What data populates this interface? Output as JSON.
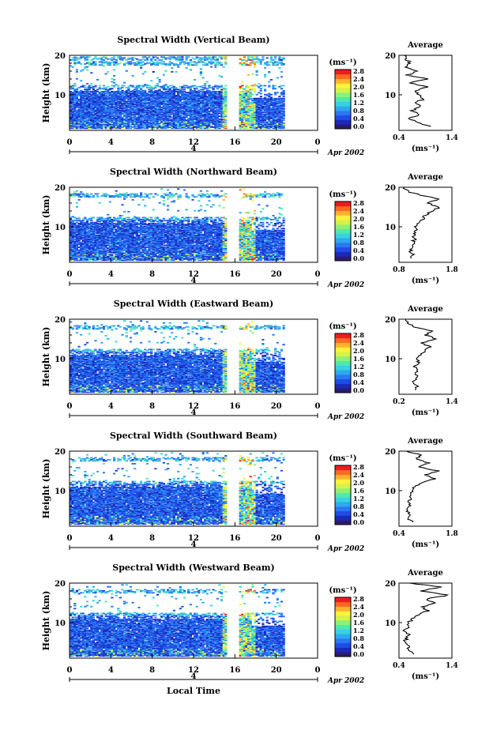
{
  "chart_data": {
    "type": "heatmap",
    "date_label": "Apr 2002",
    "day_label": "4",
    "xlabel": "Local Time",
    "x_ticks": [
      "0",
      "4",
      "8",
      "12",
      "16",
      "20",
      "0"
    ],
    "xlim": [
      0,
      24
    ],
    "ylabel": "Height (km)",
    "y_ticks": [
      "10",
      "20"
    ],
    "ylim": [
      1,
      20
    ],
    "colorbar": {
      "unit": "(ms⁻¹)",
      "ticks": [
        "0.0",
        "0.4",
        "0.8",
        "1.2",
        "1.6",
        "2.0",
        "2.4",
        "2.8"
      ],
      "range": [
        0.0,
        3.0
      ],
      "colors": [
        "#2b1a6e",
        "#1a2ab8",
        "#1f4ce6",
        "#2a78f2",
        "#2ea8f0",
        "#37d2e0",
        "#4fe8b0",
        "#8ef07a",
        "#d6f24a",
        "#fff23a",
        "#ffb22e",
        "#ff6a22",
        "#f01c1c"
      ]
    },
    "data_gap_hours": [
      15.0,
      16.2
    ],
    "data_end_hour": 20.6,
    "average_title": "Average",
    "average_xlabel": "(ms⁻¹)",
    "panels": [
      {
        "title": "Spectral Width (Vertical Beam)",
        "avg_xticks": [
          "0.4",
          "1.4"
        ],
        "avg_xlim": [
          0.4,
          1.4
        ],
        "avg_profile": {
          "height": [
            2,
            3,
            4,
            5,
            6,
            7,
            8,
            9,
            10,
            11,
            12,
            13,
            14,
            15,
            16,
            17,
            18,
            19,
            20
          ],
          "value": [
            0.98,
            0.72,
            0.6,
            0.78,
            0.65,
            0.82,
            0.7,
            0.88,
            0.75,
            0.7,
            0.92,
            0.6,
            0.95,
            0.55,
            0.75,
            0.5,
            0.62,
            0.55,
            0.5
          ]
        }
      },
      {
        "title": "Spectral Width (Northward Beam)",
        "avg_xticks": [
          "0.8",
          "1.8"
        ],
        "avg_xlim": [
          0.8,
          1.8
        ],
        "avg_profile": {
          "height": [
            2,
            3,
            4,
            5,
            6,
            7,
            8,
            9,
            10,
            11,
            12,
            13,
            14,
            15,
            16,
            17,
            18,
            19,
            20
          ],
          "value": [
            1.0,
            1.05,
            1.02,
            1.08,
            1.05,
            1.1,
            1.08,
            1.12,
            1.1,
            1.15,
            1.25,
            1.3,
            1.45,
            1.55,
            1.35,
            1.55,
            1.2,
            0.95,
            0.9
          ]
        }
      },
      {
        "title": "Spectral Width (Eastward Beam)",
        "avg_xticks": [
          "0.2",
          "1.4"
        ],
        "avg_xlim": [
          0.2,
          1.4
        ],
        "avg_profile": {
          "height": [
            2,
            3,
            4,
            5,
            6,
            7,
            8,
            9,
            10,
            11,
            12,
            13,
            14,
            15,
            16,
            17,
            18,
            19,
            20
          ],
          "value": [
            0.55,
            0.6,
            0.5,
            0.62,
            0.58,
            0.6,
            0.55,
            0.65,
            0.6,
            0.7,
            0.78,
            0.9,
            0.7,
            1.05,
            0.8,
            0.95,
            0.55,
            0.4,
            0.35
          ]
        }
      },
      {
        "title": "Spectral Width (Southward Beam)",
        "avg_xticks": [
          "0.4",
          "1.8"
        ],
        "avg_xlim": [
          0.4,
          1.8
        ],
        "avg_profile": {
          "height": [
            2,
            3,
            4,
            5,
            6,
            7,
            8,
            9,
            10,
            11,
            12,
            13,
            14,
            15,
            16,
            17,
            18,
            19,
            20
          ],
          "value": [
            0.8,
            0.62,
            0.7,
            0.6,
            0.68,
            0.65,
            0.72,
            0.7,
            0.78,
            0.8,
            1.0,
            1.35,
            1.1,
            1.45,
            0.9,
            1.2,
            0.85,
            1.0,
            0.6
          ]
        }
      },
      {
        "title": "Spectral Width (Westward Beam)",
        "avg_xticks": [
          "0.4",
          "1.4"
        ],
        "avg_xlim": [
          0.4,
          1.4
        ],
        "avg_profile": {
          "height": [
            2,
            3,
            4,
            5,
            6,
            7,
            8,
            9,
            10,
            11,
            12,
            13,
            14,
            15,
            16,
            17,
            18,
            19,
            20
          ],
          "value": [
            0.7,
            0.55,
            0.6,
            0.5,
            0.55,
            0.58,
            0.5,
            0.6,
            0.58,
            0.65,
            0.75,
            0.95,
            0.85,
            1.1,
            0.9,
            1.35,
            0.8,
            1.2,
            0.6
          ]
        }
      }
    ]
  }
}
